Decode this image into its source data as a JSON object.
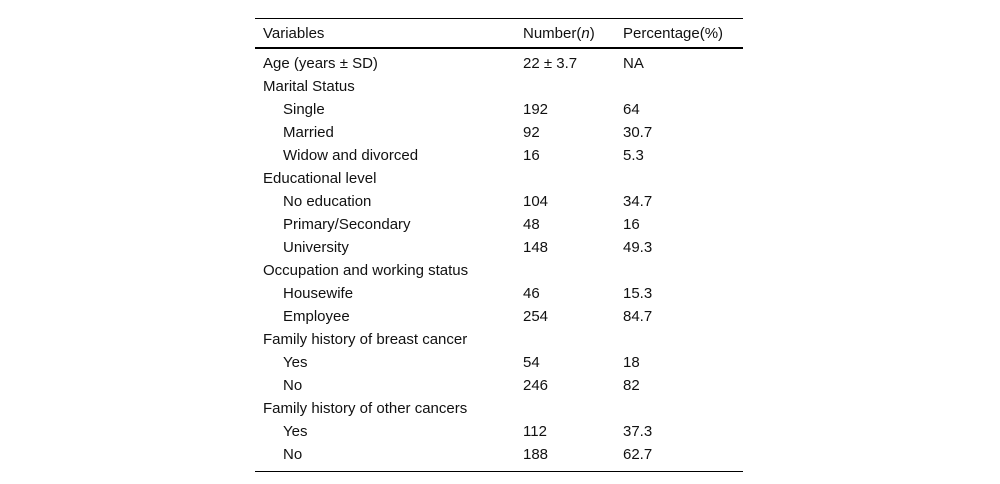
{
  "table": {
    "header": {
      "variables": "Variables",
      "number_prefix": "Number(",
      "number_n": "n",
      "number_suffix": ")",
      "percentage": "Percentage(%)"
    },
    "colors": {
      "text": "#111111",
      "rule": "#000000",
      "background": "#ffffff"
    },
    "rows": [
      {
        "indent": 0,
        "variable": "Age (years ± SD)",
        "number": "22 ± 3.7",
        "percentage": "NA"
      },
      {
        "indent": 0,
        "variable": "Marital Status",
        "number": "",
        "percentage": ""
      },
      {
        "indent": 1,
        "variable": "Single",
        "number": "192",
        "percentage": "64"
      },
      {
        "indent": 1,
        "variable": "Married",
        "number": "92",
        "percentage": "30.7"
      },
      {
        "indent": 1,
        "variable": "Widow and divorced",
        "number": "16",
        "percentage": "5.3"
      },
      {
        "indent": 0,
        "variable": "Educational level",
        "number": "",
        "percentage": ""
      },
      {
        "indent": 1,
        "variable": "No education",
        "number": "104",
        "percentage": "34.7"
      },
      {
        "indent": 1,
        "variable": "Primary/Secondary",
        "number": "48",
        "percentage": "16"
      },
      {
        "indent": 1,
        "variable": "University",
        "number": "148",
        "percentage": "49.3"
      },
      {
        "indent": 0,
        "variable": "Occupation and working status",
        "number": "",
        "percentage": ""
      },
      {
        "indent": 1,
        "variable": "Housewife",
        "number": "46",
        "percentage": "15.3"
      },
      {
        "indent": 1,
        "variable": "Employee",
        "number": "254",
        "percentage": "84.7"
      },
      {
        "indent": 0,
        "variable": "Family history of breast cancer",
        "number": "",
        "percentage": ""
      },
      {
        "indent": 1,
        "variable": "Yes",
        "number": "54",
        "percentage": "18"
      },
      {
        "indent": 1,
        "variable": "No",
        "number": "246",
        "percentage": "82"
      },
      {
        "indent": 0,
        "variable": "Family history of other cancers",
        "number": "",
        "percentage": ""
      },
      {
        "indent": 1,
        "variable": "Yes",
        "number": "112",
        "percentage": "37.3"
      },
      {
        "indent": 1,
        "variable": "No",
        "number": "188",
        "percentage": "62.7"
      }
    ]
  }
}
